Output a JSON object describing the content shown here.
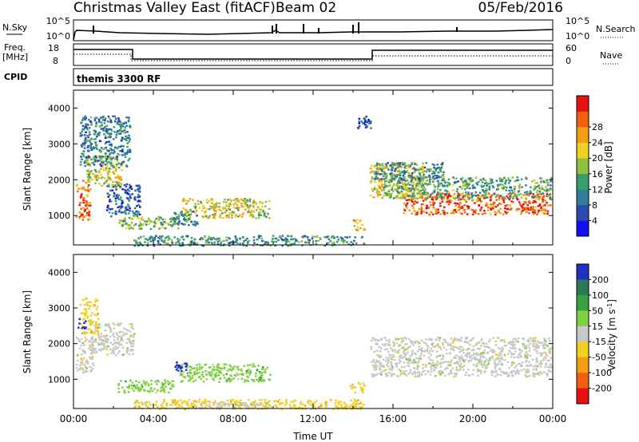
{
  "header": {
    "title": "Christmas Valley East (fitACF)",
    "beam": "Beam 02",
    "date": "05/Feb/2016"
  },
  "top_panels": {
    "nsky": {
      "left_label": "N.Sky",
      "right_label": "N.Search",
      "left_ticks": [
        "10^5",
        "10^0"
      ],
      "right_ticks": [
        "10^5",
        "10^0"
      ]
    },
    "freq": {
      "left_label_1": "Freq.",
      "left_label_2": "[MHz]",
      "right_label": "Nave",
      "left_ticks": [
        "18",
        "8"
      ],
      "right_ticks": [
        "60",
        "0"
      ]
    },
    "cpid": {
      "label": "CPID",
      "program": "themis 3300 RF"
    }
  },
  "chart_data": [
    {
      "type": "heatmap",
      "name": "power-panel",
      "xlabel": "",
      "ylabel": "Slant Range [km]",
      "xlim": [
        0,
        24
      ],
      "ylim": [
        180,
        4500
      ],
      "yticks": [
        "1000",
        "2000",
        "3000",
        "4000"
      ],
      "colorbar": {
        "label": "Power [dB]",
        "range": [
          0,
          32
        ],
        "ticks": [
          "4",
          "8",
          "12",
          "16",
          "20",
          "24",
          "28"
        ],
        "colors": [
          "#1010f0",
          "#2a4ab0",
          "#2e7e9a",
          "#3a9e6a",
          "#90c040",
          "#f0d020",
          "#f0a010",
          "#f06010",
          "#e81010"
        ]
      },
      "regions": [
        {
          "t0": 0.1,
          "t1": 0.8,
          "r0": 900,
          "r1": 2000,
          "level": 26
        },
        {
          "t0": 0.6,
          "t1": 2.4,
          "r0": 1800,
          "r1": 2700,
          "level": 18
        },
        {
          "t0": 0.3,
          "t1": 2.8,
          "r0": 2400,
          "r1": 3800,
          "level": 9
        },
        {
          "t0": 1.6,
          "t1": 3.3,
          "r0": 1000,
          "r1": 1900,
          "level": 7
        },
        {
          "t0": 2.2,
          "t1": 5.2,
          "r0": 650,
          "r1": 1000,
          "level": 15
        },
        {
          "t0": 5.4,
          "t1": 9.8,
          "r0": 950,
          "r1": 1500,
          "level": 19
        },
        {
          "t0": 4.8,
          "t1": 6.2,
          "r0": 750,
          "r1": 1150,
          "level": 10
        },
        {
          "t0": 3.0,
          "t1": 14.5,
          "r0": 180,
          "r1": 460,
          "level": 11
        },
        {
          "t0": 13.9,
          "t1": 14.6,
          "r0": 600,
          "r1": 900,
          "level": 21
        },
        {
          "t0": 14.2,
          "t1": 14.9,
          "r0": 3400,
          "r1": 3800,
          "level": 6
        },
        {
          "t0": 14.8,
          "t1": 17.5,
          "r0": 1500,
          "r1": 2500,
          "level": 20
        },
        {
          "t0": 16.5,
          "t1": 23.9,
          "r0": 1050,
          "r1": 1650,
          "level": 27
        },
        {
          "t0": 15.5,
          "t1": 23.9,
          "r0": 1500,
          "r1": 2100,
          "level": 13
        },
        {
          "t0": 15.0,
          "t1": 18.5,
          "r0": 2000,
          "r1": 2500,
          "level": 10
        }
      ]
    },
    {
      "type": "heatmap",
      "name": "velocity-panel",
      "xlabel": "Time UT",
      "ylabel": "Slant Range [km]",
      "xlim": [
        0,
        24
      ],
      "ylim": [
        180,
        4500
      ],
      "xticks": [
        "00:00",
        "04:00",
        "08:00",
        "12:00",
        "16:00",
        "20:00",
        "00:00"
      ],
      "yticks": [
        "1000",
        "2000",
        "3000",
        "4000"
      ],
      "colorbar": {
        "label": "Velocity [m s^-1]",
        "ticks": [
          "200",
          "100",
          "50",
          "15",
          "-15",
          "-50",
          "-100",
          "-200"
        ],
        "colors": [
          "#2030c0",
          "#2a7a5a",
          "#3aa040",
          "#80d040",
          "#c8c8c8",
          "#f0d020",
          "#f0a010",
          "#f06010",
          "#e81010"
        ]
      },
      "regions": [
        {
          "t0": 0.1,
          "t1": 1.0,
          "r0": 1200,
          "r1": 2200,
          "color": 4
        },
        {
          "t0": 0.8,
          "t1": 3.0,
          "r0": 1700,
          "r1": 2600,
          "color": 4
        },
        {
          "t0": 0.3,
          "t1": 1.2,
          "r0": 2300,
          "r1": 3300,
          "color": 5
        },
        {
          "t0": 2.2,
          "t1": 5.0,
          "r0": 650,
          "r1": 1000,
          "color": 3
        },
        {
          "t0": 5.3,
          "t1": 9.8,
          "r0": 950,
          "r1": 1450,
          "color": 3
        },
        {
          "t0": 5.0,
          "t1": 5.8,
          "r0": 1250,
          "r1": 1500,
          "color": 0
        },
        {
          "t0": 3.0,
          "t1": 14.5,
          "r0": 180,
          "r1": 460,
          "color": 5
        },
        {
          "t0": 6.0,
          "t1": 9.5,
          "r0": 200,
          "r1": 380,
          "color": 4
        },
        {
          "t0": 13.8,
          "t1": 14.6,
          "r0": 650,
          "r1": 950,
          "color": 5
        },
        {
          "t0": 14.8,
          "t1": 23.9,
          "r0": 1100,
          "r1": 2200,
          "color": 4
        },
        {
          "t0": 0.2,
          "t1": 0.6,
          "r0": 2400,
          "r1": 2800,
          "color": 0
        }
      ]
    }
  ]
}
